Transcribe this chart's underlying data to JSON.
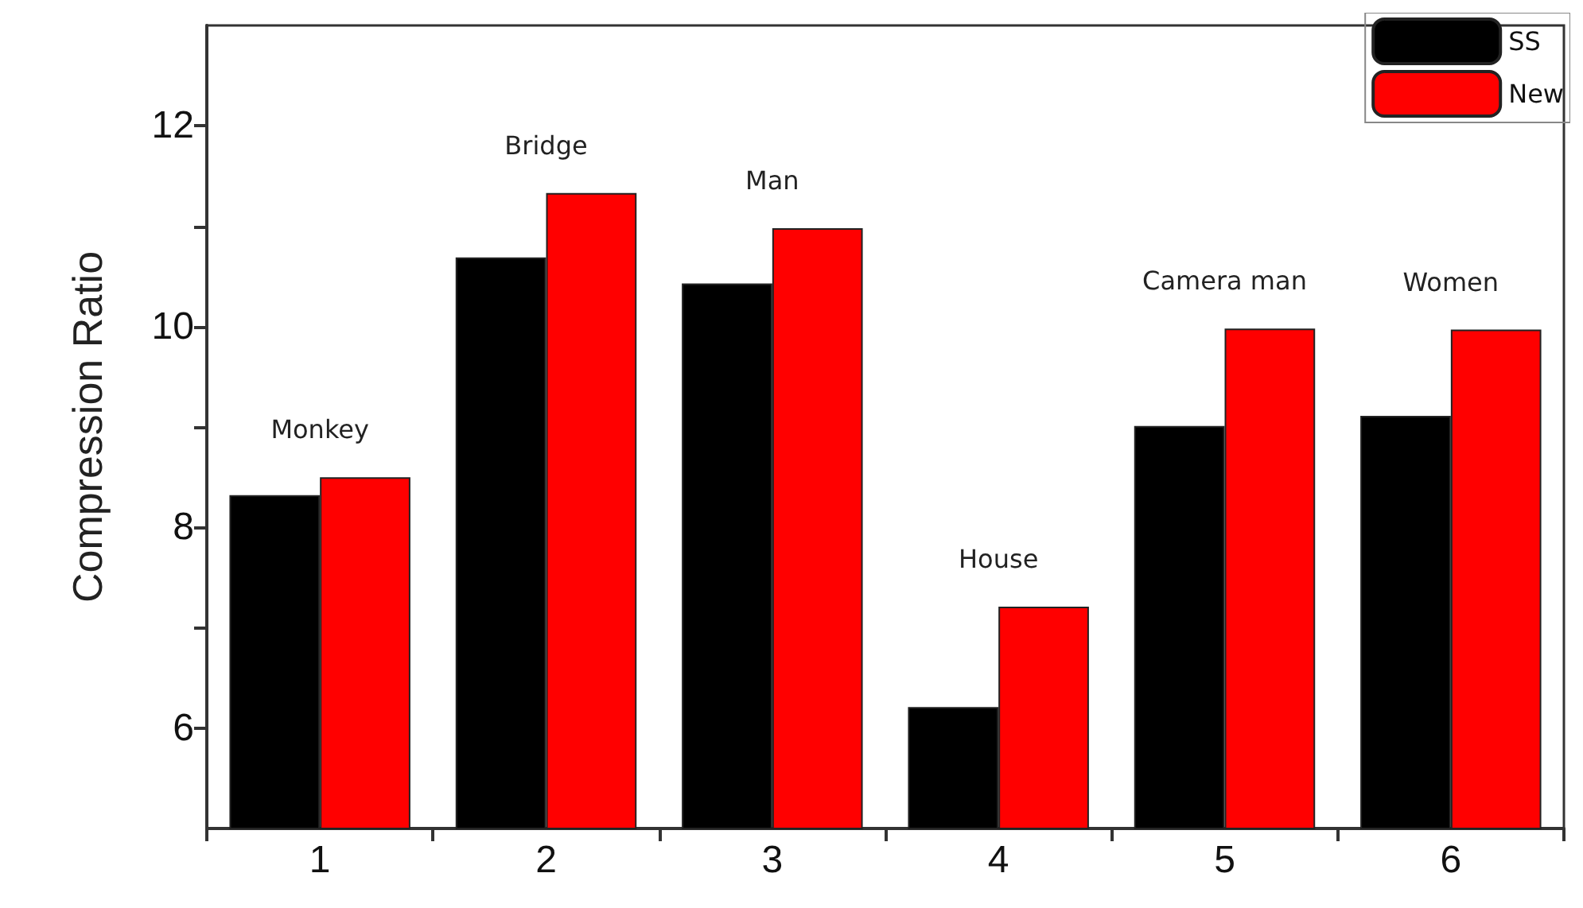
{
  "chart_data": {
    "type": "bar",
    "ylabel": "Compression Ratio",
    "categories": [
      "1",
      "2",
      "3",
      "4",
      "5",
      "6"
    ],
    "series": [
      {
        "name": "SS",
        "color": "#000000",
        "values": [
          8.32,
          10.69,
          10.43,
          6.21,
          9.01,
          9.11
        ]
      },
      {
        "name": "New",
        "color": "#ff0000",
        "values": [
          8.5,
          11.33,
          10.98,
          7.21,
          9.98,
          9.97
        ]
      }
    ],
    "ylim": [
      5,
      13
    ],
    "yticks": [
      6,
      {
        "value": 7,
        "label": null
      },
      8,
      {
        "value": 9,
        "label": null
      },
      10,
      {
        "value": 11,
        "label": null
      },
      12
    ],
    "annotations": [
      "Monkey",
      "Bridge",
      "Man",
      "House",
      "Camera man",
      "Women"
    ],
    "legend": "top right",
    "grid": false
  }
}
